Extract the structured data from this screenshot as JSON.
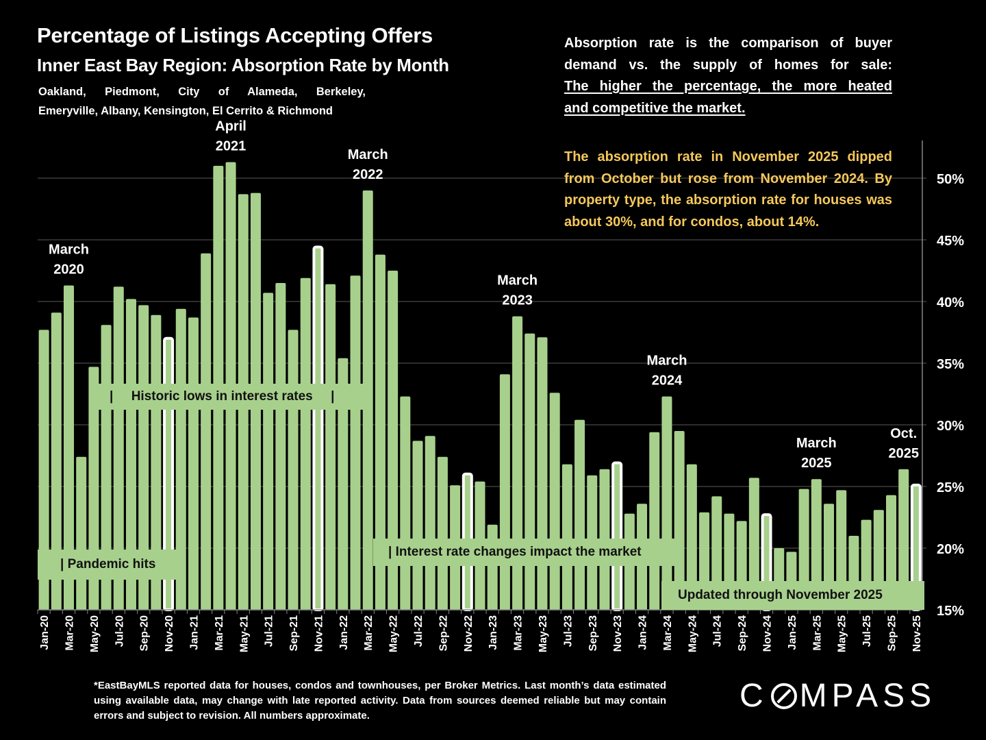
{
  "header": {
    "title": "Percentage of Listings Accepting Offers",
    "subtitle": "Inner East Bay Region:  Absorption Rate by Month",
    "areas_line1": "Oakland, Piedmont, City of Alameda, Berkeley,",
    "areas_line2": "Emeryville, Albany, Kensington, El Cerrito & Richmond"
  },
  "explanation": {
    "line1": "Absorption rate is the comparison of buyer",
    "line2": "demand vs. the supply of homes for sale:",
    "underlined1": "The higher the percentage, the more heated",
    "underlined2": "and competitive the market."
  },
  "insight": "The absorption rate in November 2025 dipped from October but rose from November 2024. By property type, the absorption rate for houses was about 30%, and for condos, about 14%.",
  "annotations": {
    "pandemic": "| Pandemic hits",
    "historic_lows": "|     Historic lows in interest rates     |",
    "rate_changes": "| Interest rate changes impact the market",
    "updated": "Updated through November 2025"
  },
  "footnote": "*EastBayMLS reported data for houses, condos and townhouses, per Broker Metrics. Last month’s data estimated using available data, may change with late reported activity. Data from sources deemed reliable but may contain errors and subject to revision. All numbers approximate.",
  "brand": {
    "logo_text_left": "C",
    "logo_text_right": "MPASS",
    "logo_icon": "compass-o-slash-icon"
  },
  "colors": {
    "bar": "#a8d08d",
    "highlight_outline": "#ffffff",
    "insight_text": "#f5c85a",
    "background": "#000000",
    "grid": "#5a5a5a"
  },
  "chart_data": {
    "type": "bar",
    "title": "Percentage of Listings Accepting Offers",
    "xlabel": "",
    "ylabel": "",
    "ylim": [
      15,
      53
    ],
    "y_axis_position": "right",
    "y_ticks": [
      15,
      20,
      25,
      30,
      35,
      40,
      45,
      50
    ],
    "y_tick_labels": [
      "15%",
      "20%",
      "25%",
      "30%",
      "35%",
      "40%",
      "45%",
      "50%"
    ],
    "grid": true,
    "categories": [
      "Jan-20",
      "Feb-20",
      "Mar-20",
      "Apr-20",
      "May-20",
      "Jun-20",
      "Jul-20",
      "Aug-20",
      "Sep-20",
      "Oct-20",
      "Nov-20",
      "Dec-20",
      "Jan-21",
      "Feb-21",
      "Mar-21",
      "Apr-21",
      "May-21",
      "Jun-21",
      "Jul-21",
      "Aug-21",
      "Sep-21",
      "Oct-21",
      "Nov-21",
      "Dec-21",
      "Jan-22",
      "Feb-22",
      "Mar-22",
      "Apr-22",
      "May-22",
      "Jun-22",
      "Jul-22",
      "Aug-22",
      "Sep-22",
      "Oct-22",
      "Nov-22",
      "Dec-22",
      "Jan-23",
      "Feb-23",
      "Mar-23",
      "Apr-23",
      "May-23",
      "Jun-23",
      "Jul-23",
      "Aug-23",
      "Sep-23",
      "Oct-23",
      "Nov-23",
      "Dec-23",
      "Jan-24",
      "Feb-24",
      "Mar-24",
      "Apr-24",
      "May-24",
      "Jun-24",
      "Jul-24",
      "Aug-24",
      "Sep-24",
      "Oct-24",
      "Nov-24",
      "Dec-24",
      "Jan-25",
      "Feb-25",
      "Mar-25",
      "Apr-25",
      "May-25",
      "Jun-25",
      "Jul-25",
      "Aug-25",
      "Sep-25",
      "Oct-25",
      "Nov-25"
    ],
    "tick_label_every": 2,
    "values": [
      37.7,
      39.1,
      41.3,
      27.4,
      34.7,
      38.1,
      41.2,
      40.2,
      39.7,
      38.9,
      37.1,
      39.4,
      38.7,
      43.9,
      51.0,
      51.3,
      48.7,
      48.8,
      40.7,
      41.5,
      37.7,
      41.9,
      44.5,
      41.4,
      35.4,
      42.1,
      49.0,
      43.8,
      42.5,
      32.3,
      28.7,
      29.1,
      27.4,
      25.1,
      26.1,
      25.4,
      21.9,
      34.1,
      38.8,
      37.4,
      37.1,
      32.6,
      26.8,
      30.4,
      25.9,
      26.4,
      27.0,
      22.8,
      23.6,
      29.4,
      32.3,
      29.5,
      26.8,
      22.9,
      24.2,
      22.8,
      22.2,
      25.7,
      22.8,
      20.0,
      19.7,
      24.8,
      25.6,
      23.6,
      24.7,
      21.0,
      22.3,
      23.1,
      24.3,
      26.4,
      25.2
    ],
    "highlighted": [
      "Nov-20",
      "Nov-21",
      "Nov-22",
      "Nov-23",
      "Nov-24",
      "Nov-25"
    ],
    "bar_annotations": [
      {
        "category": "Mar-20",
        "line1": "March",
        "line2": "2020"
      },
      {
        "category": "Apr-21",
        "line1": "April",
        "line2": "2021"
      },
      {
        "category": "Mar-22",
        "line1": "March",
        "line2": "2022"
      },
      {
        "category": "Mar-23",
        "line1": "March",
        "line2": "2023"
      },
      {
        "category": "Mar-24",
        "line1": "March",
        "line2": "2024"
      },
      {
        "category": "Mar-25",
        "line1": "March",
        "line2": "2025"
      },
      {
        "category": "Oct-25",
        "line1": "Oct.",
        "line2": "2025"
      }
    ]
  }
}
